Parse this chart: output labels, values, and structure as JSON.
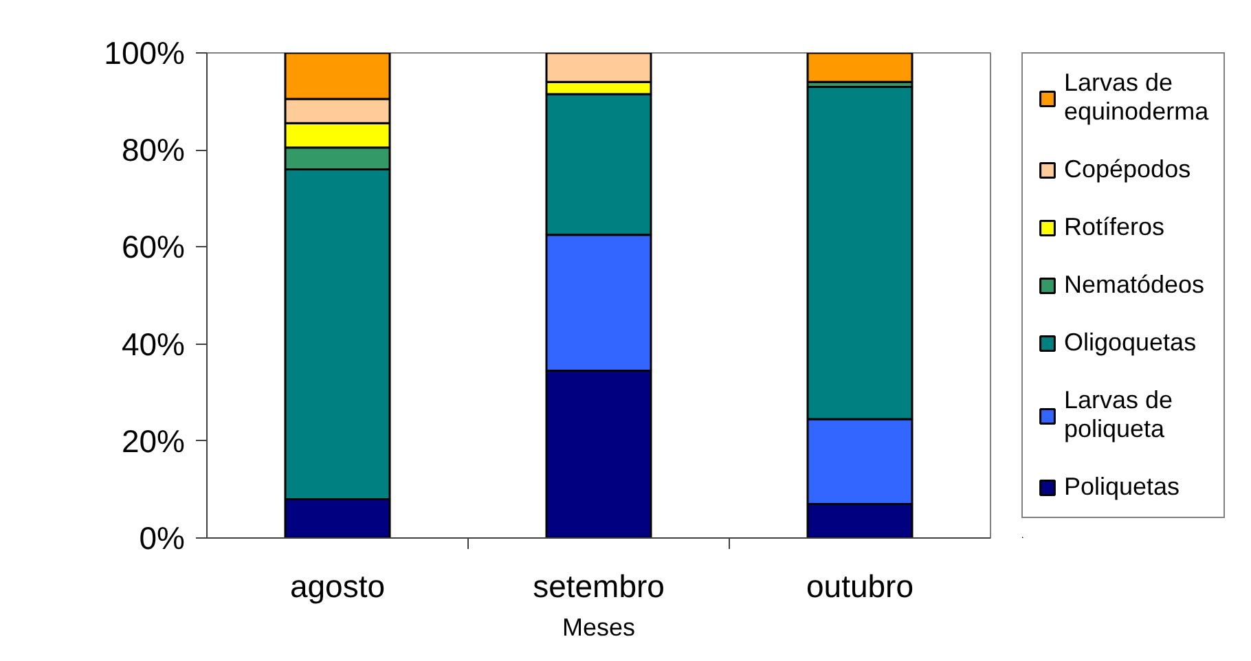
{
  "chart_data": {
    "type": "bar",
    "stacked": true,
    "xlabel": "Meses",
    "categories": [
      "agosto",
      "setembro",
      "outubro"
    ],
    "series": [
      {
        "name": "Poliquetas",
        "color": "#000080",
        "values": [
          8,
          34.5,
          7
        ]
      },
      {
        "name": "Larvas de poliqueta",
        "color": "#3366ff",
        "values": [
          null,
          28,
          17.5
        ]
      },
      {
        "name": "Oligoquetas",
        "color": "#008080",
        "values": [
          68,
          29,
          68.5
        ]
      },
      {
        "name": "Nematódeos",
        "color": "#339966",
        "values": [
          4.5,
          null,
          1
        ]
      },
      {
        "name": "Rotíferos",
        "color": "#ffff00",
        "values": [
          5,
          2.5,
          null
        ]
      },
      {
        "name": "Copépodos",
        "color": "#ffcc99",
        "values": [
          5,
          6,
          null
        ]
      },
      {
        "name": "Larvas de equinoderma",
        "color": "#ff9900",
        "values": [
          9.5,
          null,
          6
        ]
      }
    ],
    "ylim": [
      0,
      100
    ],
    "yticks": [
      {
        "value": 0,
        "label": "0%"
      },
      {
        "value": 20,
        "label": "20%"
      },
      {
        "value": 40,
        "label": "40%"
      },
      {
        "value": 60,
        "label": "60%"
      },
      {
        "value": 80,
        "label": "80%"
      },
      {
        "value": 100,
        "label": "100%"
      }
    ],
    "grid": false,
    "legend": "right"
  }
}
